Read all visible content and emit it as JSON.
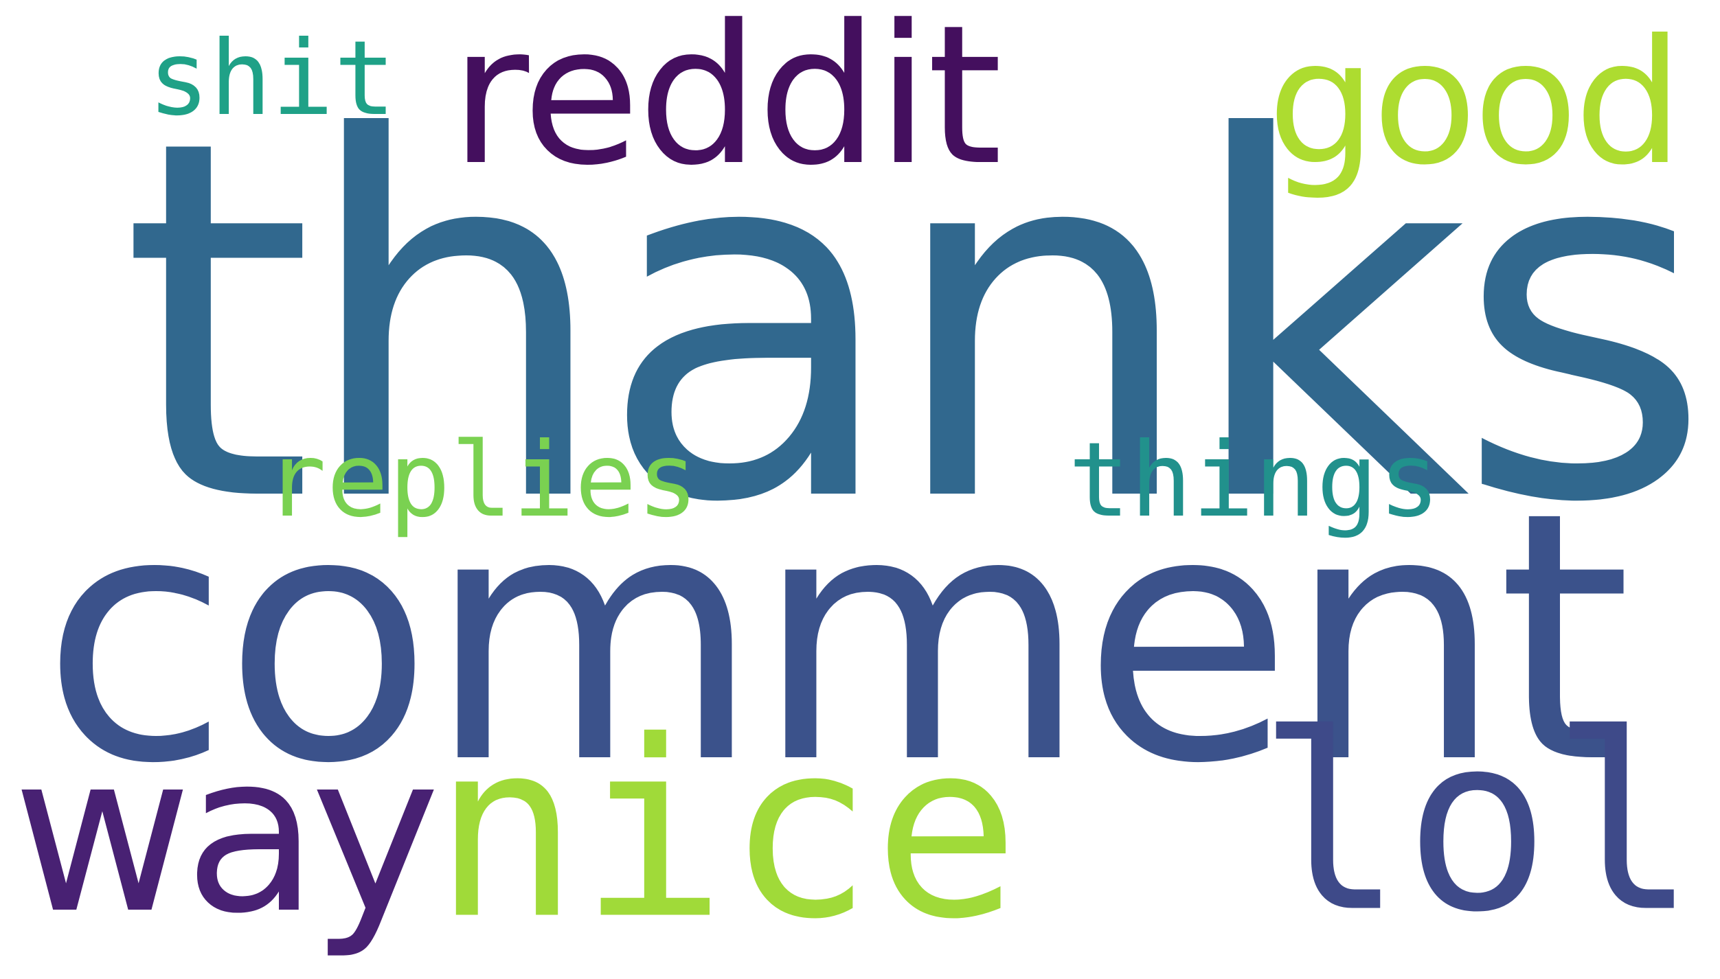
{
  "word_cloud": {
    "background": "#ffffff",
    "words": {
      "thanks": {
        "text": "thanks",
        "color": "#31688e"
      },
      "comment": {
        "text": "comment",
        "color": "#3b528b"
      },
      "reddit": {
        "text": "reddit",
        "color": "#440f5e"
      },
      "good": {
        "text": "good",
        "color": "#addc30"
      },
      "shit": {
        "text": "shit",
        "color": "#1fa187"
      },
      "replies": {
        "text": "replies",
        "color": "#7ad151"
      },
      "things": {
        "text": "things",
        "color": "#21918c"
      },
      "way": {
        "text": "way",
        "color": "#482173"
      },
      "nice": {
        "text": "nice",
        "color": "#a0da39"
      },
      "lol": {
        "text": "lol",
        "color": "#3e4a89"
      }
    }
  }
}
